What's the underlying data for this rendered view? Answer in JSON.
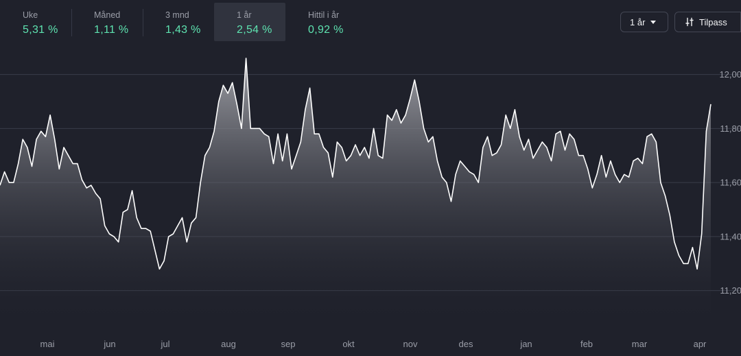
{
  "periods": [
    {
      "label": "Uke",
      "value": "5,31 %"
    },
    {
      "label": "Måned",
      "value": "1,11 %"
    },
    {
      "label": "3 mnd",
      "value": "1,43 %"
    },
    {
      "label": "1 år",
      "value": "2,54 %"
    },
    {
      "label": "Hittil i år",
      "value": "0,92 %"
    }
  ],
  "active_period": "1 år",
  "range_select": {
    "label": "1 år"
  },
  "customize_button": {
    "label": "Tilpass"
  },
  "icons": {
    "range_caret": "caret-down-icon",
    "customize": "sliders-icon"
  },
  "colors": {
    "background": "#1f212b",
    "positive": "#5ee3b0",
    "line": "#ffffff"
  },
  "chart_data": {
    "type": "area",
    "x_ticks": [
      "mai",
      "jun",
      "jul",
      "aug",
      "sep",
      "okt",
      "nov",
      "des",
      "jan",
      "feb",
      "mar",
      "apr"
    ],
    "y_ticks": [
      "12,00",
      "11,80",
      "11,60",
      "11,40",
      "11,20"
    ],
    "y_tick_values": [
      12.0,
      11.8,
      11.6,
      11.4,
      11.2
    ],
    "ylim": [
      11.09,
      12.07
    ],
    "grid": "horizontal",
    "y_axis_side": "right",
    "values": [
      11.59,
      11.64,
      11.6,
      11.6,
      11.67,
      11.76,
      11.73,
      11.66,
      11.76,
      11.79,
      11.77,
      11.85,
      11.76,
      11.65,
      11.73,
      11.7,
      11.67,
      11.67,
      11.61,
      11.58,
      11.59,
      11.56,
      11.54,
      11.44,
      11.41,
      11.4,
      11.38,
      11.49,
      11.5,
      11.57,
      11.47,
      11.43,
      11.43,
      11.42,
      11.35,
      11.28,
      11.31,
      11.4,
      11.41,
      11.44,
      11.47,
      11.38,
      11.45,
      11.47,
      11.6,
      11.7,
      11.73,
      11.79,
      11.9,
      11.96,
      11.93,
      11.97,
      11.89,
      11.8,
      12.06,
      11.8,
      11.8,
      11.8,
      11.78,
      11.77,
      11.67,
      11.78,
      11.68,
      11.78,
      11.65,
      11.7,
      11.75,
      11.87,
      11.95,
      11.78,
      11.78,
      11.73,
      11.71,
      11.62,
      11.75,
      11.73,
      11.68,
      11.7,
      11.74,
      11.7,
      11.73,
      11.69,
      11.8,
      11.7,
      11.69,
      11.85,
      11.83,
      11.87,
      11.82,
      11.85,
      11.91,
      11.98,
      11.9,
      11.8,
      11.75,
      11.77,
      11.68,
      11.62,
      11.6,
      11.53,
      11.63,
      11.68,
      11.66,
      11.64,
      11.63,
      11.6,
      11.73,
      11.77,
      11.7,
      11.71,
      11.74,
      11.85,
      11.8,
      11.87,
      11.77,
      11.72,
      11.76,
      11.69,
      11.72,
      11.75,
      11.73,
      11.68,
      11.78,
      11.79,
      11.72,
      11.78,
      11.76,
      11.7,
      11.7,
      11.65,
      11.58,
      11.63,
      11.7,
      11.62,
      11.68,
      11.63,
      11.6,
      11.63,
      11.62,
      11.68,
      11.69,
      11.67,
      11.77,
      11.78,
      11.75,
      11.6,
      11.55,
      11.48,
      11.38,
      11.33,
      11.3,
      11.3,
      11.36,
      11.28,
      11.41,
      11.79,
      11.89
    ]
  }
}
